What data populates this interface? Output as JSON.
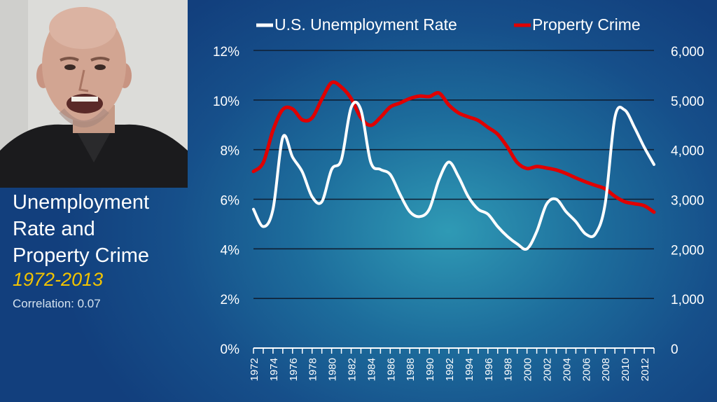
{
  "video": {
    "description_icon": "presenter-video-icon"
  },
  "side_panel": {
    "title_lines": [
      "Unemployment",
      "Rate and",
      "Property Crime"
    ],
    "years": "1972-2013",
    "correlation": "Correlation: 0.07"
  },
  "colors": {
    "unemployment_line": "#ffffff",
    "property_crime_line": "#e00000",
    "gridline": "#0f1f33",
    "years_text": "#f2c300"
  },
  "chart_data": {
    "type": "line",
    "title": "",
    "legend": [
      "U.S. Unemployment Rate",
      "Property Crime"
    ],
    "legend_position": "top",
    "grid": true,
    "x_tick_labels": [
      "1972",
      "1974",
      "1976",
      "1978",
      "1980",
      "1982",
      "1984",
      "1986",
      "1988",
      "1990",
      "1992",
      "1994",
      "1996",
      "1998",
      "2000",
      "2002",
      "2004",
      "2006",
      "2008",
      "2010",
      "2012"
    ],
    "y_left": {
      "ticks": [
        "0%",
        "2%",
        "4%",
        "6%",
        "8%",
        "10%",
        "12%"
      ],
      "range": [
        0,
        12
      ],
      "unit": "%"
    },
    "y_right": {
      "ticks": [
        "0",
        "1,000",
        "2,000",
        "3,000",
        "4,000",
        "5,000",
        "6,000"
      ],
      "range": [
        0,
        6000
      ]
    },
    "x": [
      1972,
      1973,
      1974,
      1975,
      1976,
      1977,
      1978,
      1979,
      1980,
      1981,
      1982,
      1983,
      1984,
      1985,
      1986,
      1987,
      1988,
      1989,
      1990,
      1991,
      1992,
      1993,
      1994,
      1995,
      1996,
      1997,
      1998,
      1999,
      2000,
      2001,
      2002,
      2003,
      2004,
      2005,
      2006,
      2007,
      2008,
      2009,
      2010,
      2011,
      2012,
      2013
    ],
    "series": [
      {
        "name": "U.S. Unemployment Rate",
        "axis": "left",
        "values": [
          5.6,
          4.9,
          5.6,
          8.5,
          7.7,
          7.1,
          6.1,
          5.9,
          7.2,
          7.6,
          9.7,
          9.6,
          7.5,
          7.2,
          7.0,
          6.2,
          5.5,
          5.3,
          5.6,
          6.8,
          7.5,
          6.9,
          6.1,
          5.6,
          5.4,
          4.9,
          4.5,
          4.2,
          4.0,
          4.7,
          5.8,
          6.0,
          5.5,
          5.1,
          4.6,
          4.6,
          5.8,
          9.3,
          9.6,
          8.9,
          8.1,
          7.4
        ]
      },
      {
        "name": "Property Crime",
        "axis": "right",
        "values": [
          3560,
          3740,
          4390,
          4810,
          4820,
          4600,
          4640,
          5020,
          5350,
          5260,
          5030,
          4640,
          4490,
          4650,
          4860,
          4940,
          5030,
          5080,
          5070,
          5140,
          4900,
          4740,
          4660,
          4590,
          4450,
          4310,
          4050,
          3740,
          3620,
          3660,
          3630,
          3590,
          3520,
          3430,
          3350,
          3280,
          3210,
          3060,
          2950,
          2910,
          2870,
          2740
        ]
      }
    ]
  }
}
